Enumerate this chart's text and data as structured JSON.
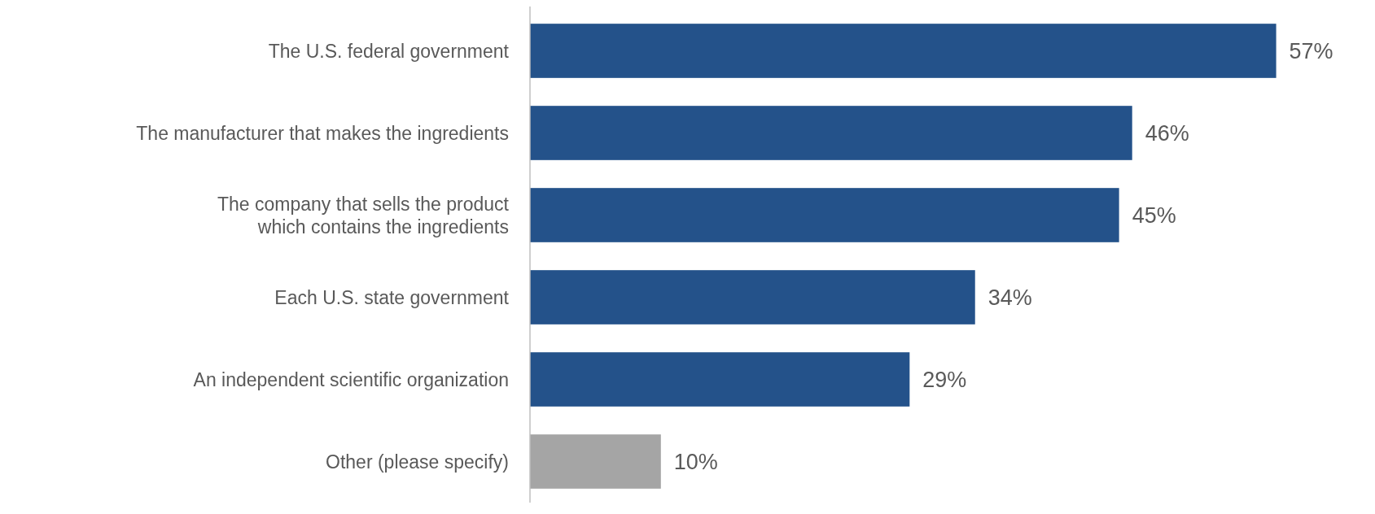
{
  "chart_data": {
    "type": "bar",
    "orientation": "horizontal",
    "categories": [
      "The U.S. federal government",
      "The manufacturer that makes the ingredients",
      "The company that sells the product\nwhich contains the ingredients",
      "Each U.S. state government",
      "An independent scientific organization",
      "Other (please specify)"
    ],
    "values": [
      57,
      46,
      45,
      34,
      29,
      10
    ],
    "colors": [
      "#24528a",
      "#24528a",
      "#24528a",
      "#24528a",
      "#24528a",
      "#a5a5a5"
    ],
    "value_labels": [
      "57%",
      "46%",
      "45%",
      "34%",
      "29%",
      "10%"
    ]
  }
}
